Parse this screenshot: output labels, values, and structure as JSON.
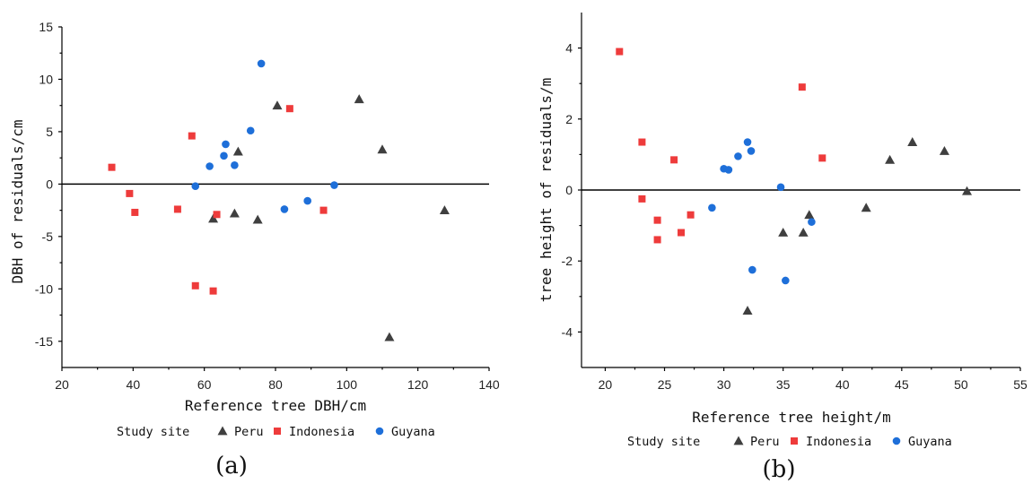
{
  "chart_data": [
    {
      "type": "scatter",
      "panel_label": "(a)",
      "xlabel": "Reference tree DBH/cm",
      "ylabel": "DBH of residuals/cm",
      "xlim": [
        20,
        140
      ],
      "ylim": [
        -17.5,
        15
      ],
      "xticks": [
        20,
        40,
        60,
        80,
        100,
        120,
        140
      ],
      "yticks": [
        -15,
        -10,
        -5,
        0,
        5,
        10,
        15
      ],
      "zero_line": true,
      "grid": false,
      "legend": {
        "position": "bottom",
        "title": "Study site",
        "entries": [
          "Peru",
          "Indonesia",
          "Guyana"
        ]
      },
      "series": [
        {
          "name": "Peru",
          "marker": "triangle",
          "color": "#3f3f3f",
          "x": [
            62.5,
            68.5,
            69.5,
            75,
            80.5,
            103.5,
            110,
            112,
            127.5
          ],
          "y": [
            -3.3,
            -2.8,
            3.1,
            -3.4,
            7.5,
            8.1,
            3.3,
            -14.6,
            -2.5
          ]
        },
        {
          "name": "Indonesia",
          "marker": "square",
          "color": "#ee3b3b",
          "x": [
            34,
            39,
            40.5,
            52.5,
            56.5,
            57.5,
            62.5,
            63.5,
            84,
            93.5
          ],
          "y": [
            1.6,
            -0.9,
            -2.7,
            -2.4,
            4.6,
            -9.7,
            -10.2,
            -2.9,
            7.2,
            -2.5
          ]
        },
        {
          "name": "Guyana",
          "marker": "circle",
          "color": "#1e6fd9",
          "x": [
            57.5,
            61.5,
            65.5,
            66,
            68.5,
            73,
            76,
            82.5,
            89,
            96.5
          ],
          "y": [
            -0.2,
            1.7,
            2.7,
            3.8,
            1.8,
            5.1,
            11.5,
            -2.4,
            -1.6,
            -0.1
          ]
        }
      ]
    },
    {
      "type": "scatter",
      "panel_label": "(b)",
      "xlabel": "Reference tree height/m",
      "ylabel": "tree height of residuals/m",
      "xlim": [
        18,
        55
      ],
      "ylim": [
        -5,
        5
      ],
      "xticks": [
        20,
        25,
        30,
        35,
        40,
        45,
        50,
        55
      ],
      "yticks": [
        -4,
        -2,
        0,
        2,
        4
      ],
      "zero_line": true,
      "grid": false,
      "legend": {
        "position": "bottom",
        "title": "Study site",
        "entries": [
          "Peru",
          "Indonesia",
          "Guyana"
        ]
      },
      "series": [
        {
          "name": "Peru",
          "marker": "triangle",
          "color": "#3f3f3f",
          "x": [
            32,
            35,
            36.7,
            37.2,
            42,
            44,
            45.9,
            48.6,
            50.5
          ],
          "y": [
            -3.4,
            -1.2,
            -1.2,
            -0.7,
            -0.5,
            0.85,
            1.35,
            1.1,
            -0.03
          ]
        },
        {
          "name": "Indonesia",
          "marker": "square",
          "color": "#ee3b3b",
          "x": [
            21.2,
            23.1,
            23.1,
            24.4,
            24.4,
            25.8,
            26.4,
            27.2,
            36.6,
            38.3
          ],
          "y": [
            3.9,
            1.35,
            -0.25,
            -0.85,
            -1.4,
            0.85,
            -1.2,
            -0.7,
            2.9,
            0.9
          ]
        },
        {
          "name": "Guyana",
          "marker": "circle",
          "color": "#1e6fd9",
          "x": [
            29,
            30,
            30.4,
            31.2,
            32,
            32.3,
            32.4,
            34.8,
            35.2,
            37.4
          ],
          "y": [
            -0.5,
            0.6,
            0.57,
            0.95,
            1.35,
            1.1,
            -2.25,
            0.08,
            -2.55,
            -0.9
          ]
        }
      ]
    }
  ]
}
